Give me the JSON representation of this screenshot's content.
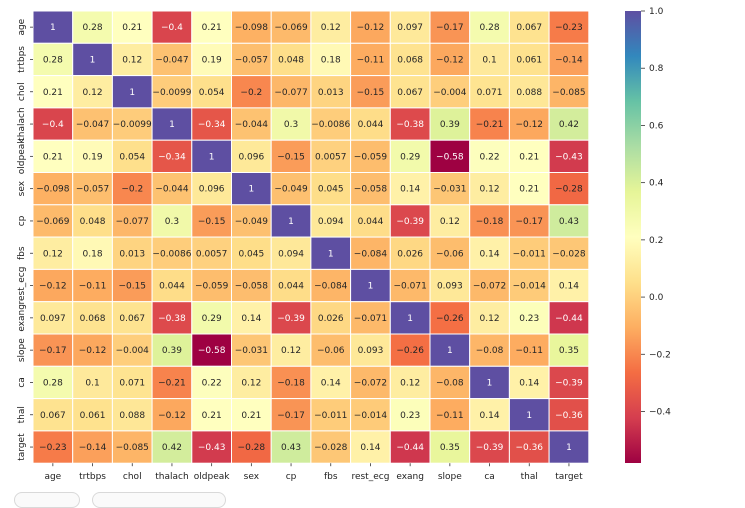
{
  "chart_data": {
    "type": "heatmap",
    "title": "",
    "xlabel": "",
    "ylabel": "",
    "labels": [
      "age",
      "trtbps",
      "chol",
      "thalach",
      "oldpeak",
      "sex",
      "cp",
      "fbs",
      "rest_ecg",
      "exang",
      "slope",
      "ca",
      "thal",
      "target"
    ],
    "matrix": [
      [
        1,
        0.28,
        0.21,
        -0.4,
        0.21,
        -0.098,
        -0.069,
        0.12,
        -0.12,
        0.097,
        -0.17,
        0.28,
        0.067,
        -0.23
      ],
      [
        0.28,
        1,
        0.12,
        -0.047,
        0.19,
        -0.057,
        0.048,
        0.18,
        -0.11,
        0.068,
        -0.12,
        0.1,
        0.061,
        -0.14
      ],
      [
        0.21,
        0.12,
        1,
        -0.0099,
        0.054,
        -0.2,
        -0.077,
        0.013,
        -0.15,
        0.067,
        -0.004,
        0.071,
        0.088,
        -0.085
      ],
      [
        -0.4,
        -0.047,
        -0.0099,
        1,
        -0.34,
        -0.044,
        0.3,
        -0.0086,
        0.044,
        -0.38,
        0.39,
        -0.21,
        -0.12,
        0.42
      ],
      [
        0.21,
        0.19,
        0.054,
        -0.34,
        1,
        0.096,
        -0.15,
        0.0057,
        -0.059,
        0.29,
        -0.58,
        0.22,
        0.21,
        -0.43
      ],
      [
        -0.098,
        -0.057,
        -0.2,
        -0.044,
        0.096,
        1,
        -0.049,
        0.045,
        -0.058,
        0.14,
        -0.031,
        0.12,
        0.21,
        -0.28
      ],
      [
        -0.069,
        0.048,
        -0.077,
        0.3,
        -0.15,
        -0.049,
        1,
        0.094,
        0.044,
        -0.39,
        0.12,
        -0.18,
        -0.17,
        0.43
      ],
      [
        0.12,
        0.18,
        0.013,
        -0.0086,
        0.0057,
        0.045,
        0.094,
        1,
        -0.084,
        0.026,
        -0.06,
        0.14,
        -0.011,
        -0.028
      ],
      [
        -0.12,
        -0.11,
        -0.15,
        0.044,
        -0.059,
        -0.058,
        0.044,
        -0.084,
        1,
        -0.071,
        0.093,
        -0.072,
        -0.014,
        0.14
      ],
      [
        0.097,
        0.068,
        0.067,
        -0.38,
        0.29,
        0.14,
        -0.39,
        0.026,
        -0.071,
        1,
        -0.26,
        0.12,
        0.23,
        -0.44
      ],
      [
        -0.17,
        -0.12,
        -0.004,
        0.39,
        -0.58,
        -0.031,
        0.12,
        -0.06,
        0.093,
        -0.26,
        1,
        -0.08,
        -0.11,
        0.35
      ],
      [
        0.28,
        0.1,
        0.071,
        -0.21,
        0.22,
        0.12,
        -0.18,
        0.14,
        -0.072,
        0.12,
        -0.08,
        1,
        0.14,
        -0.39
      ],
      [
        0.067,
        0.061,
        0.088,
        -0.12,
        0.21,
        0.21,
        -0.17,
        -0.011,
        -0.014,
        0.23,
        -0.11,
        0.14,
        1,
        -0.36
      ],
      [
        -0.23,
        -0.14,
        -0.085,
        0.42,
        -0.43,
        -0.28,
        0.43,
        -0.028,
        0.14,
        -0.44,
        0.35,
        -0.39,
        -0.36,
        1
      ]
    ],
    "colormap": "Spectral",
    "vmin": -0.58,
    "vmax": 1.0,
    "colorbar_ticks": [
      1.0,
      0.8,
      0.6,
      0.4,
      0.2,
      0.0,
      -0.2,
      -0.4
    ],
    "colorbar_tick_labels": [
      "1.0",
      "0.8",
      "0.6",
      "0.4",
      "0.2",
      "0.0",
      "−0.2",
      "−0.4"
    ],
    "colors": {
      "spectral_stops": [
        "#9e0142",
        "#d53e4f",
        "#f46d43",
        "#fdae61",
        "#fee08b",
        "#ffffbf",
        "#e6f598",
        "#abdda4",
        "#66c2a5",
        "#3288bd",
        "#5e4fa2"
      ],
      "light_text": "#ffffff",
      "dark_text": "#262626"
    }
  }
}
